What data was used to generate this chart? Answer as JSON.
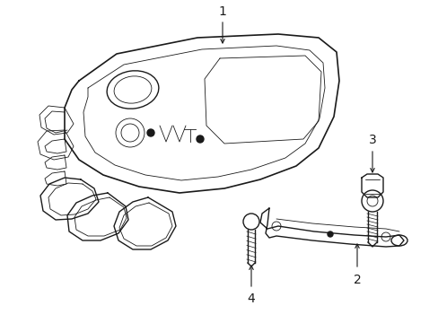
{
  "background_color": "#ffffff",
  "line_color": "#1a1a1a",
  "lw": 1.0,
  "lw_thin": 0.6,
  "lw_thick": 1.2,
  "figsize": [
    4.89,
    3.6
  ],
  "dpi": 100
}
